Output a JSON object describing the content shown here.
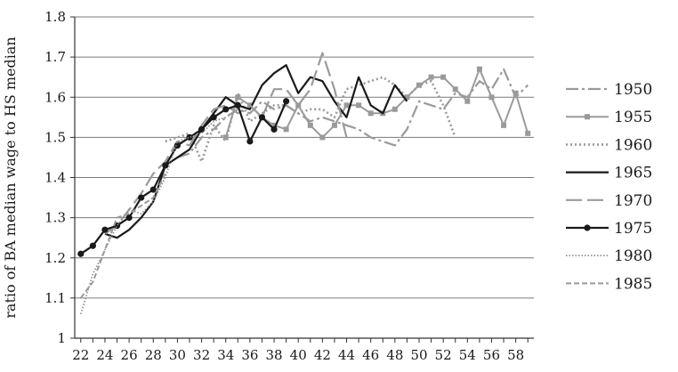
{
  "chart_data": {
    "type": "line",
    "title": "",
    "xlabel": "",
    "ylabel": "ratio of BA median wage to HS median",
    "xlim": [
      21.5,
      59.5
    ],
    "ylim": [
      1,
      1.8
    ],
    "x_ticks": [
      22,
      24,
      26,
      28,
      30,
      32,
      34,
      36,
      38,
      40,
      42,
      44,
      46,
      48,
      50,
      52,
      54,
      56,
      58
    ],
    "y_ticks": [
      1,
      1.1,
      1.2,
      1.3,
      1.4,
      1.5,
      1.6,
      1.7,
      1.8
    ],
    "y_tick_labels": [
      "1",
      "1.1",
      "1.2",
      "1.3",
      "1.4",
      "1.5",
      "1.6",
      "1.7",
      "1.8"
    ],
    "grid": "horizontal",
    "legend_position": "right",
    "series": [
      {
        "name": "1950",
        "color": "#9a9a9a",
        "dash": "14,4,3,4",
        "width": 2.2,
        "marker": "none",
        "x": [
          30,
          31,
          32,
          33,
          34,
          35,
          36,
          37,
          38,
          39,
          40,
          41,
          42,
          43,
          44,
          45,
          46,
          47,
          48,
          49,
          50,
          51,
          52,
          53,
          54,
          55,
          56,
          57,
          58,
          59
        ],
        "y": [
          1.45,
          1.46,
          1.5,
          1.52,
          1.55,
          1.57,
          1.56,
          1.59,
          1.57,
          1.58,
          1.56,
          1.54,
          1.55,
          1.54,
          1.53,
          1.52,
          1.5,
          1.49,
          1.48,
          1.52,
          1.59,
          1.58,
          1.57,
          1.61,
          1.6,
          1.64,
          1.62,
          1.67,
          1.6,
          1.63
        ]
      },
      {
        "name": "1955",
        "color": "#9a9a9a",
        "dash": "",
        "width": 2.0,
        "marker": "square",
        "x": [
          34,
          35,
          36,
          37,
          38,
          39,
          40,
          41,
          42,
          43,
          44,
          45,
          46,
          47,
          48,
          49,
          50,
          51,
          52,
          53,
          54,
          55,
          56,
          57,
          58,
          59
        ],
        "y": [
          1.5,
          1.6,
          1.58,
          1.55,
          1.53,
          1.52,
          1.58,
          1.53,
          1.5,
          1.53,
          1.58,
          1.58,
          1.56,
          1.56,
          1.57,
          1.6,
          1.63,
          1.65,
          1.65,
          1.62,
          1.59,
          1.67,
          1.6,
          1.53,
          1.61,
          1.51
        ]
      },
      {
        "name": "1960",
        "color": "#9a9a9a",
        "dash": "2,3",
        "width": 2.6,
        "marker": "none",
        "x": [
          29,
          30,
          31,
          32,
          33,
          34,
          35,
          36,
          37,
          38,
          39,
          40,
          41,
          42,
          43,
          44,
          45,
          46,
          47,
          48,
          49,
          50,
          51,
          52,
          53
        ],
        "y": [
          1.49,
          1.5,
          1.51,
          1.44,
          1.53,
          1.49,
          1.61,
          1.54,
          1.56,
          1.58,
          1.58,
          1.56,
          1.57,
          1.57,
          1.55,
          1.62,
          1.63,
          1.64,
          1.65,
          1.63,
          1.6,
          1.63,
          1.64,
          1.58,
          1.5
        ]
      },
      {
        "name": "1965",
        "color": "#1a1a1a",
        "dash": "",
        "width": 2.2,
        "marker": "none",
        "x": [
          24,
          25,
          26,
          27,
          28,
          29,
          30,
          31,
          32,
          33,
          34,
          35,
          36,
          37,
          38,
          39,
          40,
          41,
          42,
          43,
          44,
          45,
          46,
          47,
          48,
          49
        ],
        "y": [
          1.26,
          1.25,
          1.27,
          1.3,
          1.34,
          1.43,
          1.45,
          1.47,
          1.52,
          1.56,
          1.6,
          1.58,
          1.57,
          1.63,
          1.66,
          1.68,
          1.61,
          1.65,
          1.64,
          1.59,
          1.55,
          1.65,
          1.58,
          1.56,
          1.63,
          1.59
        ]
      },
      {
        "name": "1970",
        "color": "#9a9a9a",
        "dash": "18,6",
        "width": 2.2,
        "marker": "none",
        "x": [
          24,
          25,
          26,
          27,
          28,
          29,
          30,
          31,
          32,
          33,
          34,
          35,
          36,
          37,
          38,
          39,
          40,
          41,
          42,
          43,
          44
        ],
        "y": [
          1.26,
          1.28,
          1.32,
          1.36,
          1.41,
          1.44,
          1.49,
          1.48,
          1.53,
          1.57,
          1.58,
          1.56,
          1.58,
          1.55,
          1.62,
          1.62,
          1.58,
          1.62,
          1.71,
          1.62,
          1.5
        ]
      },
      {
        "name": "1975",
        "color": "#1a1a1a",
        "dash": "",
        "width": 2.2,
        "marker": "circle",
        "x": [
          22,
          23,
          24,
          25,
          26,
          27,
          28,
          29,
          30,
          31,
          32,
          33,
          34,
          35,
          36,
          37,
          38,
          39
        ],
        "y": [
          1.21,
          1.23,
          1.27,
          1.28,
          1.3,
          1.35,
          1.37,
          1.43,
          1.48,
          1.5,
          1.52,
          1.55,
          1.57,
          1.58,
          1.49,
          1.55,
          1.52,
          1.59
        ]
      },
      {
        "name": "1980",
        "color": "#8a8a8a",
        "dash": "1.5,2",
        "width": 1.6,
        "marker": "none",
        "x": [
          22,
          23,
          24,
          25,
          26,
          27,
          28,
          29,
          30,
          31,
          32,
          33,
          34
        ],
        "y": [
          1.06,
          1.16,
          1.22,
          1.28,
          1.32,
          1.31,
          1.34,
          1.4,
          1.49,
          1.5,
          1.51,
          1.54,
          1.55
        ]
      },
      {
        "name": "1985",
        "color": "#9a9a9a",
        "dash": "6,3",
        "width": 2.0,
        "marker": "none",
        "x": [
          22,
          23,
          24,
          25,
          26,
          27,
          28,
          29
        ],
        "y": [
          1.1,
          1.14,
          1.22,
          1.3,
          1.31,
          1.33,
          1.35,
          1.41
        ]
      }
    ]
  }
}
